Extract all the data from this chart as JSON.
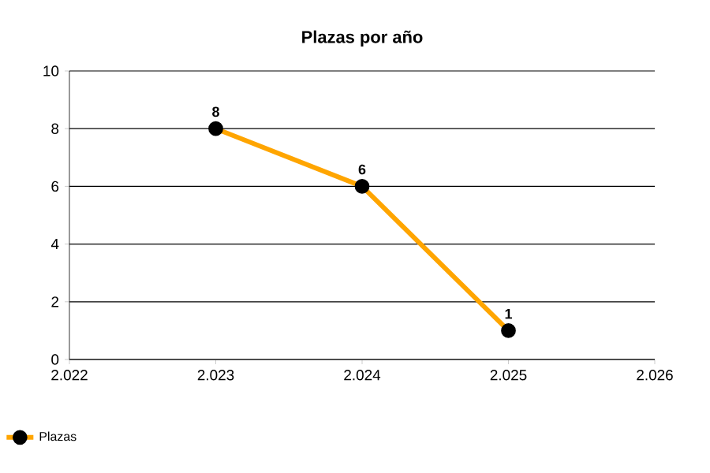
{
  "chart_data": {
    "type": "line",
    "title": "Plazas por año",
    "x": [
      2023,
      2024,
      2025
    ],
    "series": [
      {
        "name": "Plazas",
        "color": "#ffa500",
        "values": [
          8,
          6,
          1
        ]
      }
    ],
    "xlim": [
      2022,
      2026
    ],
    "xticks": [
      {
        "value": 2022,
        "label": "2.022"
      },
      {
        "value": 2023,
        "label": "2.023"
      },
      {
        "value": 2024,
        "label": "2.024"
      },
      {
        "value": 2025,
        "label": "2.025"
      },
      {
        "value": 2026,
        "label": "2.026"
      }
    ],
    "ylim": [
      0,
      10
    ],
    "yticks": [
      0,
      2,
      4,
      6,
      8,
      10
    ],
    "grid": "y",
    "legend": "bottom left",
    "marker": "circle",
    "line_style": "solid",
    "data_labels": true
  }
}
